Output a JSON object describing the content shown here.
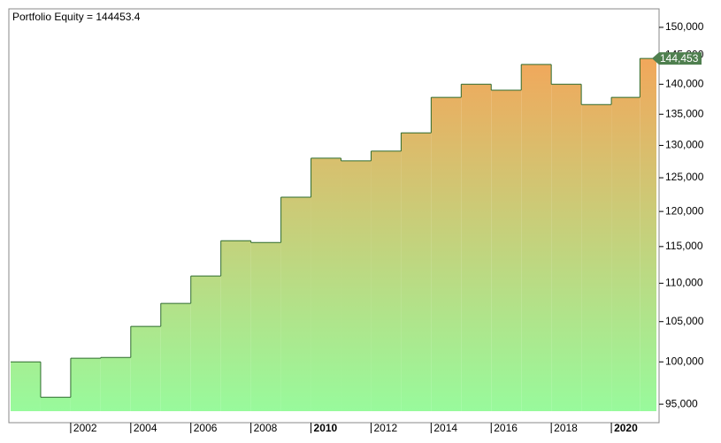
{
  "chart_data": {
    "type": "step-area",
    "title": "Portfolio Equity = 144453.4",
    "x": [
      2000,
      2001,
      2002,
      2003,
      2004,
      2005,
      2006,
      2007,
      2008,
      2009,
      2010,
      2011,
      2012,
      2013,
      2014,
      2015,
      2016,
      2017,
      2018,
      2019,
      2020,
      2020.95
    ],
    "series": [
      {
        "name": "Portfolio Equity",
        "color": "#2e6b2e",
        "values": [
          100000,
          95800,
          100440,
          100540,
          104400,
          107350,
          110970,
          115810,
          115570,
          122100,
          128000,
          127600,
          129100,
          132000,
          137800,
          140000,
          139000,
          143400,
          140000,
          136600,
          137800,
          144453.4
        ]
      }
    ],
    "current": {
      "value": 144453.4,
      "label": "144,453",
      "color": "#4f7f4f"
    },
    "fill_top": "#f3a65a",
    "fill_bottom": "#98fa9c",
    "log_scale": true,
    "xlim": [
      2000,
      2021.5
    ],
    "ylim": [
      94200,
      153400
    ],
    "xticks": [
      2002,
      2004,
      2006,
      2008,
      2010,
      2012,
      2014,
      2016,
      2018,
      2020
    ],
    "yticks": [
      {
        "value": 95000,
        "label": "95,000"
      },
      {
        "value": 100000,
        "label": "100,000"
      },
      {
        "value": 105000,
        "label": "105,000"
      },
      {
        "value": 110000,
        "label": "110,000"
      },
      {
        "value": 115000,
        "label": "115,000"
      },
      {
        "value": 120000,
        "label": "120,000"
      },
      {
        "value": 125000,
        "label": "125,000"
      },
      {
        "value": 130000,
        "label": "130,000"
      },
      {
        "value": 135000,
        "label": "135,000"
      },
      {
        "value": 140000,
        "label": "140,000"
      },
      {
        "value": 145000,
        "label": "145,000"
      },
      {
        "value": 150000,
        "label": "150,000"
      }
    ]
  }
}
